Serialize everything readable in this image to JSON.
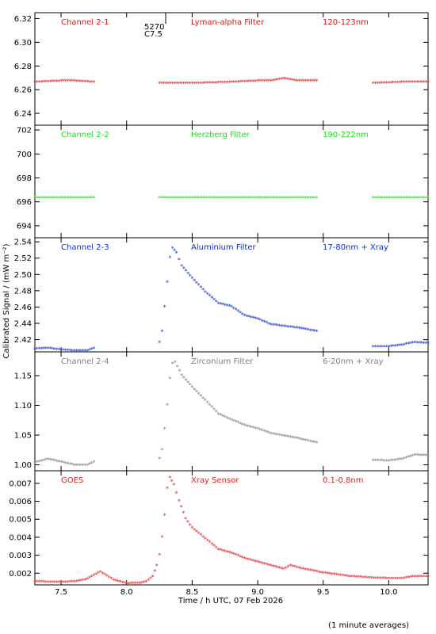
{
  "ylabel": "Calibrated Signal / (mW m⁻²)",
  "xlabel": "Time / h UTC, 07 Feb 2026",
  "footnote": "(1 minute averages)",
  "marker": {
    "top": "5270",
    "bottom": "C7.5"
  },
  "xlim": [
    7.3,
    10.3
  ],
  "xticks": [
    "7.5",
    "8.0",
    "8.5",
    "9.0",
    "9.5",
    "10.0"
  ],
  "panels": [
    {
      "channel": "Channel 2-1",
      "filter": "Lyman-alpha Filter",
      "band": "120-123nm",
      "color": "#d42020",
      "ylim": [
        6.23,
        6.325
      ],
      "yticks": [
        "6.24",
        "6.26",
        "6.28",
        "6.30",
        "6.32"
      ],
      "segments": [
        [
          [
            7.3,
            6.266
          ],
          [
            7.5,
            6.267
          ],
          [
            7.6,
            6.267
          ],
          [
            7.75,
            6.266
          ]
        ],
        [
          [
            8.25,
            6.265
          ],
          [
            8.5,
            6.265
          ],
          [
            8.8,
            6.266
          ],
          [
            9.0,
            6.267
          ],
          [
            9.1,
            6.267
          ],
          [
            9.2,
            6.269
          ],
          [
            9.3,
            6.267
          ],
          [
            9.45,
            6.267
          ]
        ],
        [
          [
            9.88,
            6.265
          ],
          [
            10.1,
            6.266
          ],
          [
            10.3,
            6.266
          ]
        ]
      ]
    },
    {
      "channel": "Channel 2-2",
      "filter": "Herzberg Filter",
      "band": "190-222nm",
      "color": "#22dd22",
      "ylim": [
        693,
        702.4
      ],
      "yticks": [
        "694",
        "696",
        "698",
        "700",
        "702"
      ],
      "segments": [
        [
          [
            7.3,
            696.3
          ],
          [
            7.75,
            696.3
          ]
        ],
        [
          [
            8.25,
            696.3
          ],
          [
            9.45,
            696.3
          ]
        ],
        [
          [
            9.88,
            696.3
          ],
          [
            10.3,
            696.3
          ]
        ]
      ]
    },
    {
      "channel": "Channel 2-3",
      "filter": "Aluminium Filter",
      "band": "17-80nm + Xray",
      "color": "#1030cc",
      "ylim": [
        2.405,
        2.545
      ],
      "yticks": [
        "2.42",
        "2.44",
        "2.46",
        "2.48",
        "2.50",
        "2.52",
        "2.54"
      ],
      "segments": [
        [
          [
            7.3,
            2.408
          ],
          [
            7.4,
            2.409
          ],
          [
            7.5,
            2.407
          ],
          [
            7.6,
            2.406
          ],
          [
            7.7,
            2.406
          ],
          [
            7.75,
            2.409
          ]
        ],
        [
          [
            8.25,
            2.416
          ],
          [
            8.27,
            2.43
          ],
          [
            8.29,
            2.46
          ],
          [
            8.31,
            2.49
          ],
          [
            8.33,
            2.52
          ],
          [
            8.35,
            2.532
          ],
          [
            8.38,
            2.526
          ],
          [
            8.42,
            2.51
          ],
          [
            8.5,
            2.495
          ],
          [
            8.6,
            2.478
          ],
          [
            8.7,
            2.464
          ],
          [
            8.8,
            2.46
          ],
          [
            8.9,
            2.449
          ],
          [
            9.0,
            2.445
          ],
          [
            9.1,
            2.438
          ],
          [
            9.2,
            2.436
          ],
          [
            9.3,
            2.434
          ],
          [
            9.4,
            2.431
          ],
          [
            9.45,
            2.43
          ]
        ],
        [
          [
            9.88,
            2.411
          ],
          [
            10.0,
            2.411
          ],
          [
            10.1,
            2.413
          ],
          [
            10.2,
            2.416
          ],
          [
            10.3,
            2.415
          ]
        ]
      ]
    },
    {
      "channel": "Channel 2-4",
      "filter": "Zirconium Filter",
      "band": "6-20nm + Xray",
      "color": "#808080",
      "ylim": [
        0.99,
        1.19
      ],
      "yticks": [
        "1.00",
        "1.05",
        "1.10",
        "1.15"
      ],
      "segments": [
        [
          [
            7.3,
            1.003
          ],
          [
            7.4,
            1.009
          ],
          [
            7.5,
            1.004
          ],
          [
            7.6,
            0.999
          ],
          [
            7.7,
            0.999
          ],
          [
            7.75,
            1.004
          ]
        ],
        [
          [
            8.25,
            1.01
          ],
          [
            8.27,
            1.025
          ],
          [
            8.29,
            1.06
          ],
          [
            8.31,
            1.1
          ],
          [
            8.33,
            1.145
          ],
          [
            8.35,
            1.17
          ],
          [
            8.37,
            1.172
          ],
          [
            8.42,
            1.15
          ],
          [
            8.5,
            1.13
          ],
          [
            8.6,
            1.108
          ],
          [
            8.7,
            1.085
          ],
          [
            8.8,
            1.075
          ],
          [
            8.9,
            1.066
          ],
          [
            9.0,
            1.06
          ],
          [
            9.1,
            1.052
          ],
          [
            9.2,
            1.048
          ],
          [
            9.3,
            1.044
          ],
          [
            9.4,
            1.039
          ],
          [
            9.45,
            1.037
          ]
        ],
        [
          [
            9.88,
            1.007
          ],
          [
            10.0,
            1.006
          ],
          [
            10.1,
            1.009
          ],
          [
            10.2,
            1.016
          ],
          [
            10.3,
            1.015
          ]
        ]
      ]
    },
    {
      "channel": "GOES",
      "filter": "Xray Sensor",
      "band": "0.1-0.8nm",
      "color": "#e02020",
      "ylim": [
        0.00135,
        0.0077
      ],
      "yticks": [
        "0.002",
        "0.003",
        "0.004",
        "0.005",
        "0.006",
        "0.007"
      ],
      "segments": [
        [
          [
            7.3,
            0.0015
          ],
          [
            7.5,
            0.00148
          ],
          [
            7.6,
            0.0015
          ],
          [
            7.7,
            0.00165
          ],
          [
            7.8,
            0.00205
          ],
          [
            7.9,
            0.0016
          ],
          [
            8.0,
            0.0014
          ],
          [
            8.1,
            0.00142
          ],
          [
            8.15,
            0.0015
          ],
          [
            8.2,
            0.0018
          ],
          [
            8.23,
            0.0024
          ],
          [
            8.25,
            0.003
          ],
          [
            8.27,
            0.004
          ],
          [
            8.29,
            0.0052
          ],
          [
            8.31,
            0.0067
          ],
          [
            8.33,
            0.0073
          ],
          [
            8.36,
            0.0069
          ],
          [
            8.4,
            0.006
          ],
          [
            8.45,
            0.005
          ],
          [
            8.5,
            0.0045
          ],
          [
            8.6,
            0.0039
          ],
          [
            8.7,
            0.0033
          ],
          [
            8.8,
            0.0031
          ],
          [
            8.9,
            0.0028
          ],
          [
            9.0,
            0.0026
          ],
          [
            9.1,
            0.0024
          ],
          [
            9.2,
            0.0022
          ],
          [
            9.25,
            0.0024
          ],
          [
            9.35,
            0.0022
          ],
          [
            9.5,
            0.002
          ],
          [
            9.7,
            0.0018
          ],
          [
            9.9,
            0.0017
          ],
          [
            10.1,
            0.00168
          ],
          [
            10.2,
            0.0018
          ],
          [
            10.3,
            0.0018
          ]
        ]
      ]
    }
  ],
  "chart_data": {
    "type": "scatter",
    "xlabel": "Time / h UTC, 07 Feb 2026",
    "ylabel": "Calibrated Signal / (mW m⁻²)",
    "xlim": [
      7.3,
      10.3
    ],
    "charts": [
      {
        "title": "Channel 2-1 Lyman-alpha Filter 120-123nm",
        "ylim": [
          6.23,
          6.325
        ],
        "series": [
          {
            "name": "Channel 2-1",
            "x": [
              7.3,
              7.5,
              7.75,
              8.25,
              8.5,
              9.0,
              9.2,
              9.45,
              9.88,
              10.3
            ],
            "values": [
              6.266,
              6.267,
              6.266,
              6.265,
              6.265,
              6.267,
              6.269,
              6.267,
              6.265,
              6.266
            ]
          }
        ]
      },
      {
        "title": "Channel 2-2 Herzberg Filter 190-222nm",
        "ylim": [
          693,
          702.4
        ],
        "series": [
          {
            "name": "Channel 2-2",
            "x": [
              7.3,
              7.75,
              8.25,
              9.45,
              9.88,
              10.3
            ],
            "values": [
              696.3,
              696.3,
              696.3,
              696.3,
              696.3,
              696.3
            ]
          }
        ]
      },
      {
        "title": "Channel 2-3 Aluminium Filter 17-80nm + Xray",
        "ylim": [
          2.405,
          2.545
        ],
        "series": [
          {
            "name": "Channel 2-3",
            "x": [
              7.3,
              7.75,
              8.25,
              8.35,
              8.5,
              9.0,
              9.45,
              9.88,
              10.3
            ],
            "values": [
              2.408,
              2.409,
              2.416,
              2.532,
              2.495,
              2.445,
              2.43,
              2.411,
              2.415
            ]
          }
        ]
      },
      {
        "title": "Channel 2-4 Zirconium Filter 6-20nm + Xray",
        "ylim": [
          0.99,
          1.19
        ],
        "series": [
          {
            "name": "Channel 2-4",
            "x": [
              7.3,
              7.75,
              8.25,
              8.37,
              8.5,
              9.0,
              9.45,
              9.88,
              10.3
            ],
            "values": [
              1.003,
              1.004,
              1.01,
              1.172,
              1.13,
              1.06,
              1.037,
              1.007,
              1.015
            ]
          }
        ]
      },
      {
        "title": "GOES Xray Sensor 0.1-0.8nm",
        "ylim": [
          0.00135,
          0.0077
        ],
        "series": [
          {
            "name": "GOES",
            "x": [
              7.3,
              7.8,
              8.0,
              8.25,
              8.33,
              8.5,
              9.0,
              9.5,
              10.0,
              10.3
            ],
            "values": [
              0.0015,
              0.00205,
              0.0014,
              0.003,
              0.0073,
              0.0045,
              0.0026,
              0.002,
              0.0017,
              0.0018
            ]
          }
        ]
      }
    ]
  }
}
